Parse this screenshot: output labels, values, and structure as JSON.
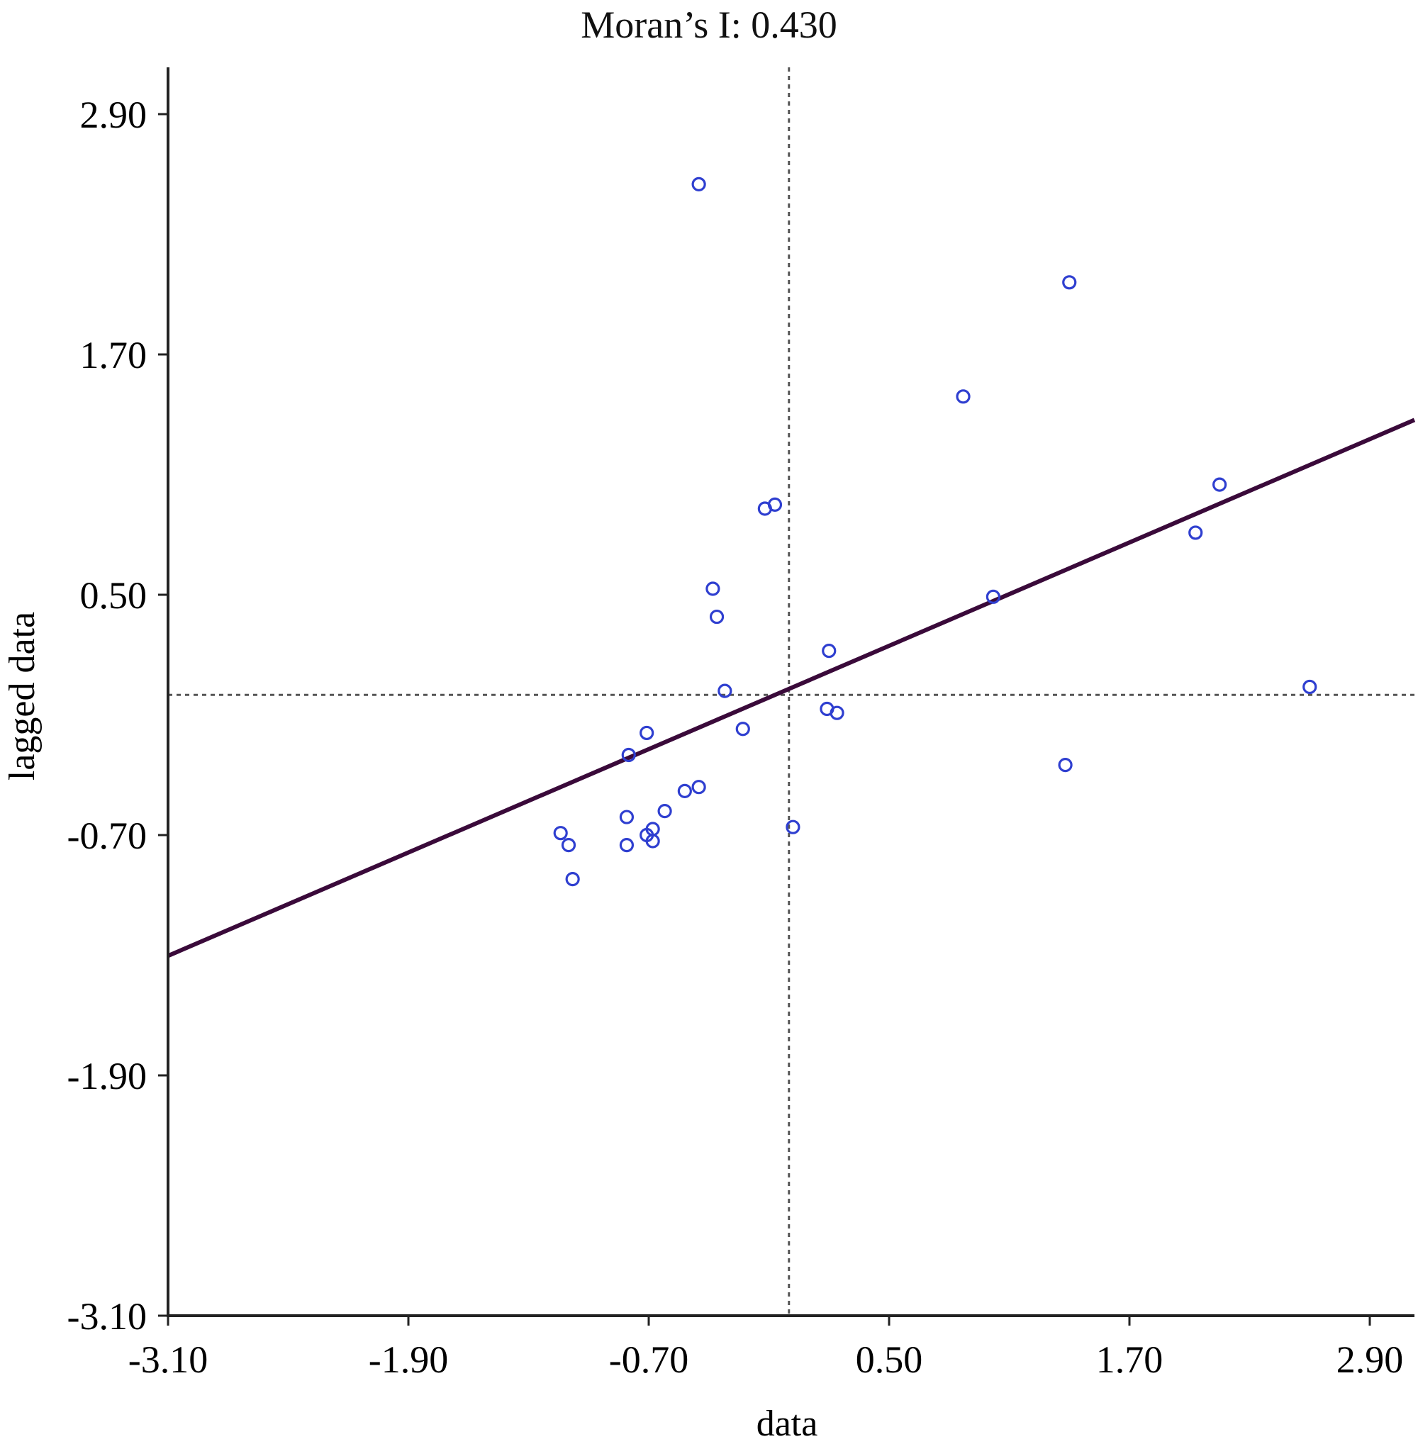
{
  "chart_data": {
    "type": "scatter",
    "title": "Moran’s I: 0.430",
    "xlabel": "data",
    "ylabel": "lagged data",
    "xlim": [
      -3.1,
      3.1
    ],
    "ylim": [
      -3.1,
      3.1
    ],
    "xticks": [
      "-3.10",
      "-1.90",
      "-0.70",
      "0.50",
      "1.70",
      "2.90"
    ],
    "yticks": [
      "2.90",
      "1.70",
      "0.50",
      "-0.70",
      "-1.90",
      "-3.10"
    ],
    "xtick_values": [
      -3.1,
      -1.9,
      -0.7,
      0.5,
      1.7,
      2.9
    ],
    "ytick_values": [
      2.9,
      1.7,
      0.5,
      -0.7,
      -1.9,
      -3.1
    ],
    "reference_lines": {
      "x": 0.0,
      "y": 0.0
    },
    "regression_line": {
      "slope": 0.43,
      "intercept": 0.03
    },
    "colors": {
      "points": "#2f3fd0",
      "regression": "#3a0a3a",
      "reference": "#555555",
      "axis": "#222222"
    },
    "series": [
      {
        "points": [
          [
            -0.45,
            2.55
          ],
          [
            1.4,
            2.06
          ],
          [
            0.87,
            1.49
          ],
          [
            2.15,
            1.05
          ],
          [
            -0.12,
            0.93
          ],
          [
            -0.07,
            0.95
          ],
          [
            2.03,
            0.81
          ],
          [
            -0.38,
            0.53
          ],
          [
            -0.36,
            0.39
          ],
          [
            1.02,
            0.49
          ],
          [
            0.2,
            0.22
          ],
          [
            -0.32,
            0.02
          ],
          [
            2.6,
            0.04
          ],
          [
            0.19,
            -0.07
          ],
          [
            0.24,
            -0.09
          ],
          [
            -0.23,
            -0.17
          ],
          [
            -0.71,
            -0.19
          ],
          [
            -0.8,
            -0.3
          ],
          [
            1.38,
            -0.35
          ],
          [
            -0.45,
            -0.46
          ],
          [
            -0.52,
            -0.48
          ],
          [
            -0.62,
            -0.58
          ],
          [
            -0.81,
            -0.61
          ],
          [
            0.02,
            -0.66
          ],
          [
            -0.68,
            -0.67
          ],
          [
            -1.14,
            -0.69
          ],
          [
            -0.71,
            -0.7
          ],
          [
            -0.68,
            -0.73
          ],
          [
            -1.1,
            -0.75
          ],
          [
            -0.81,
            -0.75
          ],
          [
            -1.08,
            -0.92
          ]
        ]
      }
    ]
  }
}
